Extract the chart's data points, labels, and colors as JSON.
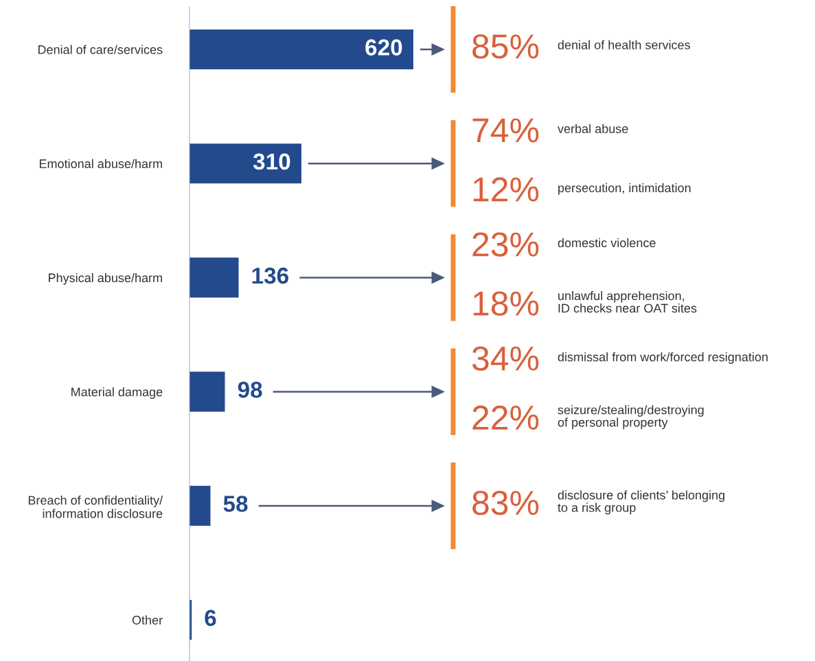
{
  "chart_data": {
    "type": "bar",
    "orientation": "horizontal",
    "categories": [
      "Denial of care/services",
      "Emotional abuse/harm",
      "Physical abuse/harm",
      "Material damage",
      "Breach of confidentiality/\ninformation disclosure",
      "Other"
    ],
    "values": [
      620,
      310,
      136,
      98,
      58,
      6
    ],
    "color": "#234a8c",
    "data_labels": true,
    "annotations": [
      "85%",
      "denial of health services",
      "74%",
      "verbal abuse",
      "12%",
      "persecution, intimidation",
      "23%",
      "domestic violence",
      "18%",
      "unlawful apprehension,\nID checks near OAT sites",
      "34%",
      "dismissal from work/forced resignation",
      "22%",
      "seizure/stealing/destroying\nof personal property",
      "83%",
      "disclosure of clients’ belonging\nto a risk group"
    ]
  }
}
